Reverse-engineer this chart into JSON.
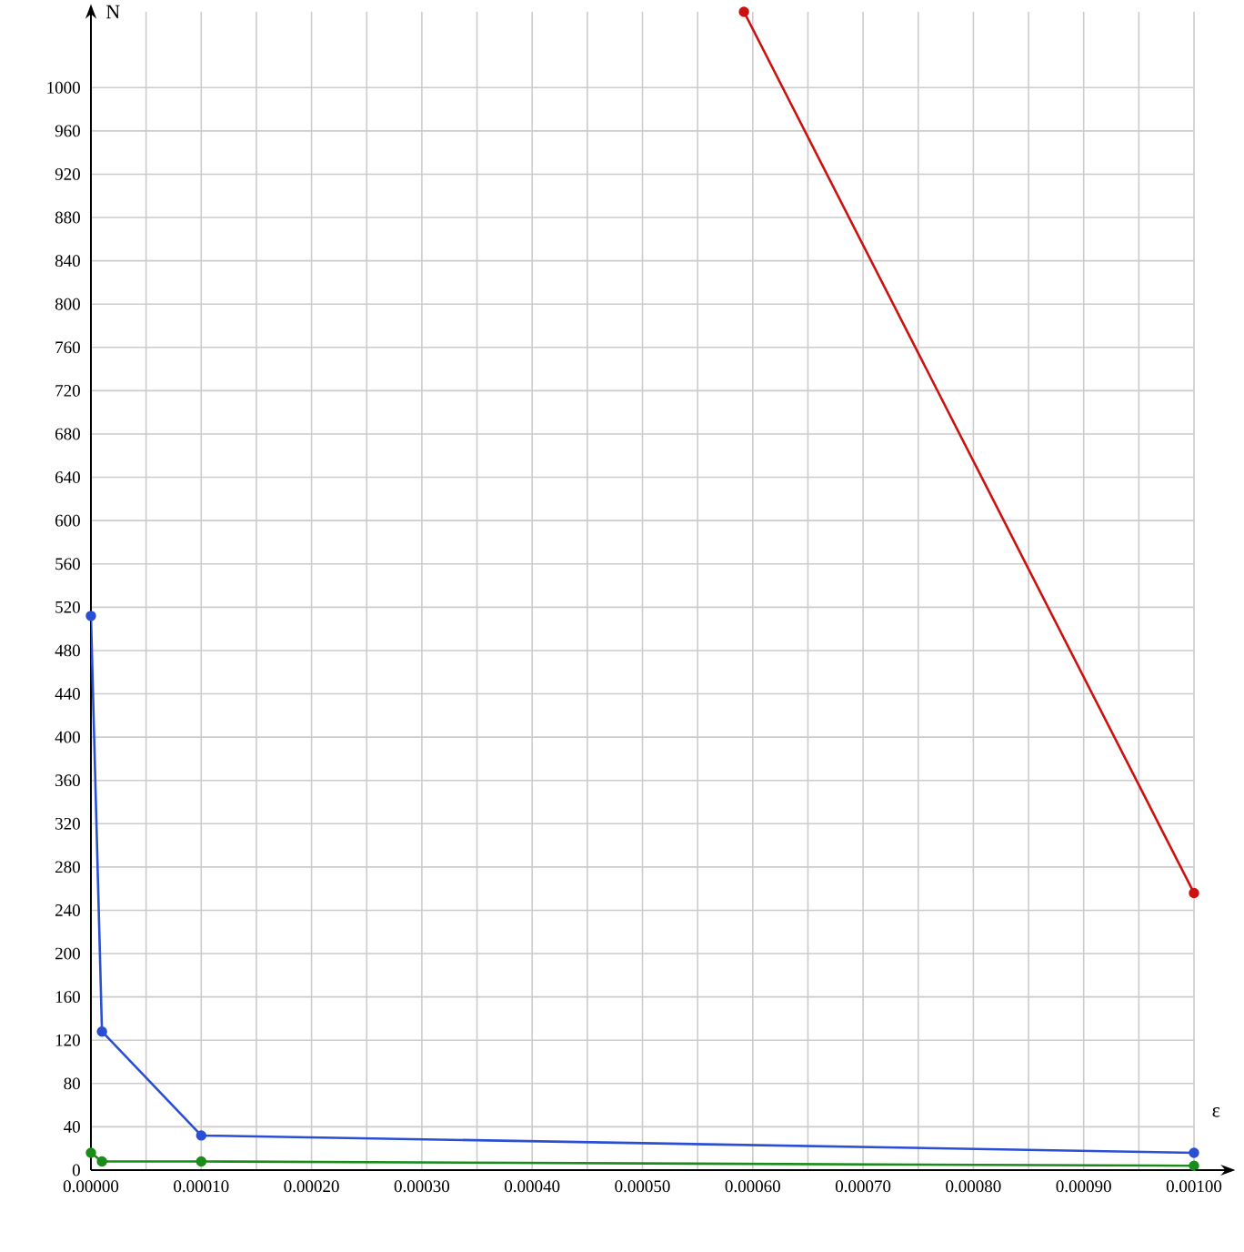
{
  "chart_data": {
    "type": "line",
    "xlabel": "ε",
    "ylabel": "N",
    "xlim": [
      0,
      0.001
    ],
    "ylim": [
      0,
      1070
    ],
    "xticks": [
      {
        "value": 0,
        "label": "0.00000"
      },
      {
        "value": 5e-05,
        "label": null
      },
      {
        "value": 0.0001,
        "label": "0.00010"
      },
      {
        "value": 0.00015,
        "label": null
      },
      {
        "value": 0.0002,
        "label": "0.00020"
      },
      {
        "value": 0.00025,
        "label": null
      },
      {
        "value": 0.0003,
        "label": "0.00030"
      },
      {
        "value": 0.00035,
        "label": null
      },
      {
        "value": 0.0004,
        "label": "0.00040"
      },
      {
        "value": 0.00045,
        "label": null
      },
      {
        "value": 0.0005,
        "label": "0.00050"
      },
      {
        "value": 0.00055,
        "label": null
      },
      {
        "value": 0.0006,
        "label": "0.00060"
      },
      {
        "value": 0.00065,
        "label": null
      },
      {
        "value": 0.0007,
        "label": "0.00070"
      },
      {
        "value": 0.00075,
        "label": null
      },
      {
        "value": 0.0008,
        "label": "0.00080"
      },
      {
        "value": 0.00085,
        "label": null
      },
      {
        "value": 0.0009,
        "label": "0.00090"
      },
      {
        "value": 0.00095,
        "label": null
      },
      {
        "value": 0.001,
        "label": "0.00100"
      }
    ],
    "yticks": [
      0,
      40,
      80,
      120,
      160,
      200,
      240,
      280,
      320,
      360,
      400,
      440,
      480,
      520,
      560,
      600,
      640,
      680,
      720,
      760,
      800,
      840,
      880,
      920,
      960,
      1000
    ],
    "grid": true,
    "marker": "circle",
    "line_style": "solid",
    "series": [
      {
        "color": "#2b4fd4",
        "x": [
          0,
          1e-05,
          0.0001,
          0.001
        ],
        "values": [
          512,
          128,
          32,
          16
        ]
      },
      {
        "color": "#1a8c1a",
        "x": [
          0,
          1e-05,
          0.0001,
          0.001
        ],
        "values": [
          16,
          8,
          8,
          4
        ]
      },
      {
        "color": "#cc1111",
        "x": [
          0.000592,
          0.001
        ],
        "values": [
          1070,
          256
        ]
      }
    ]
  }
}
